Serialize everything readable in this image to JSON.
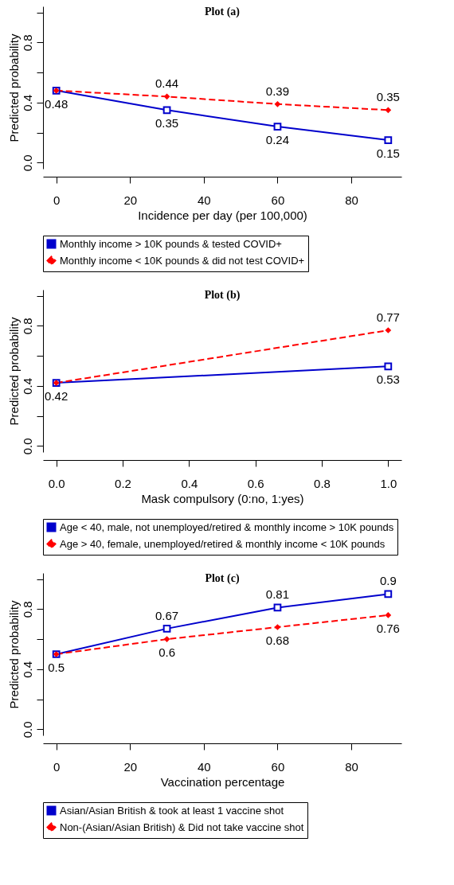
{
  "chart_data": [
    {
      "type": "line",
      "title": "Plot (a)",
      "xlabel": "Incidence per day (per 100,000)",
      "ylabel": "Predicted probability",
      "x": [
        0,
        30,
        60,
        90
      ],
      "xlim": [
        -3.6,
        93.6
      ],
      "xticks": [
        0,
        20,
        40,
        60,
        80
      ],
      "ylim": [
        -0.04,
        1.04
      ],
      "yticks": [
        {
          "value": 0,
          "label": "0.0"
        },
        {
          "value": 0.2,
          "label": null
        },
        {
          "value": 0.4,
          "label": "0.4"
        },
        {
          "value": 0.6,
          "label": null
        },
        {
          "value": 0.8,
          "label": "0.8"
        },
        {
          "value": 1,
          "label": null
        }
      ],
      "grid": false,
      "legend": "bottom",
      "series": [
        {
          "name": "Monthly income > 10K pounds & tested COVID+",
          "color": "#0000cc",
          "marker": "square",
          "line_style": "solid",
          "values": [
            0.48,
            0.35,
            0.24,
            0.15
          ],
          "value_labels": [
            "0.48",
            "0.35",
            "0.24",
            "0.15"
          ]
        },
        {
          "name": "Monthly income < 10K pounds & did not test COVID+",
          "color": "#ff0000",
          "marker": "diamond",
          "line_style": "dashed",
          "values": [
            0.48,
            0.44,
            0.39,
            0.35
          ],
          "value_labels": [
            null,
            "0.44",
            "0.39",
            "0.35"
          ]
        }
      ]
    },
    {
      "type": "line",
      "title": "Plot (b)",
      "xlabel": "Mask compulsory (0:no, 1:yes)",
      "ylabel": "Predicted probability",
      "x": [
        0,
        1
      ],
      "xlim": [
        -0.04,
        1.04
      ],
      "xticks": [
        {
          "value": 0,
          "label": "0.0"
        },
        0.2,
        0.4,
        0.6,
        0.8,
        {
          "value": 1,
          "label": "1.0"
        }
      ],
      "ylim": [
        -0.04,
        1.04
      ],
      "yticks": [
        {
          "value": 0,
          "label": "0.0"
        },
        {
          "value": 0.2,
          "label": null
        },
        {
          "value": 0.4,
          "label": "0.4"
        },
        {
          "value": 0.6,
          "label": null
        },
        {
          "value": 0.8,
          "label": "0.8"
        },
        {
          "value": 1,
          "label": null
        }
      ],
      "grid": false,
      "legend": "bottom",
      "series": [
        {
          "name": "Age < 40, male, not unemployed/retired & monthly income > 10K pounds",
          "color": "#0000cc",
          "marker": "square",
          "line_style": "solid",
          "values": [
            0.42,
            0.53
          ],
          "value_labels": [
            "0.42",
            "0.53"
          ]
        },
        {
          "name": "Age > 40, female, unemployed/retired & monthly income < 10K pounds",
          "color": "#ff0000",
          "marker": "diamond",
          "line_style": "dashed",
          "values": [
            0.42,
            0.77
          ],
          "value_labels": [
            null,
            "0.77"
          ]
        }
      ]
    },
    {
      "type": "line",
      "title": "Plot (c)",
      "xlabel": "Vaccination percentage",
      "ylabel": "Predicted probability",
      "x": [
        0,
        30,
        60,
        90
      ],
      "xlim": [
        -3.6,
        93.6
      ],
      "xticks": [
        0,
        20,
        40,
        60,
        80
      ],
      "ylim": [
        -0.04,
        1.04
      ],
      "yticks": [
        {
          "value": 0,
          "label": "0.0"
        },
        {
          "value": 0.2,
          "label": null
        },
        {
          "value": 0.4,
          "label": "0.4"
        },
        {
          "value": 0.6,
          "label": null
        },
        {
          "value": 0.8,
          "label": "0.8"
        },
        {
          "value": 1,
          "label": null
        }
      ],
      "grid": false,
      "legend": "bottom",
      "series": [
        {
          "name": "Asian/Asian British & took at least 1 vaccine shot",
          "color": "#0000cc",
          "marker": "square",
          "line_style": "solid",
          "values": [
            0.5,
            0.67,
            0.81,
            0.9
          ],
          "value_labels": [
            null,
            "0.67",
            "0.81",
            "0.9"
          ]
        },
        {
          "name": "Non-(Asian/Asian British) & Did not take vaccine shot",
          "color": "#ff0000",
          "marker": "diamond",
          "line_style": "dashed",
          "values": [
            0.5,
            0.6,
            0.68,
            0.76
          ],
          "value_labels": [
            "0.5",
            "0.6",
            "0.68",
            "0.76"
          ]
        }
      ]
    }
  ]
}
